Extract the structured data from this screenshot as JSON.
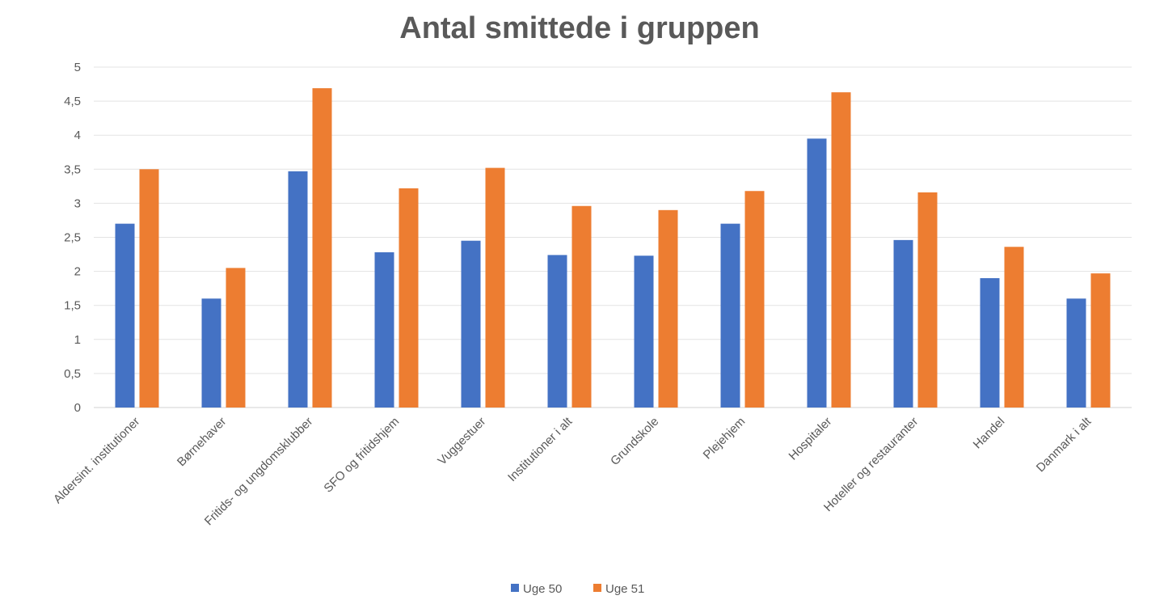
{
  "chart_data": {
    "type": "bar",
    "title": "Antal smittede i gruppen",
    "xlabel": "",
    "ylabel": "",
    "ylim": [
      0,
      5
    ],
    "yticks": [
      "0",
      "0,5",
      "1",
      "1,5",
      "2",
      "2,5",
      "3",
      "3,5",
      "4",
      "4,5",
      "5"
    ],
    "grid": true,
    "legend_position": "bottom",
    "categories": [
      "Aldersint. institutioner",
      "Børnehaver",
      "Fritids- og ungdomsklubber",
      "SFO og fritidshjem",
      "Vuggestuer",
      "Institutioner i alt",
      "Grundskole",
      "Plejehjem",
      "Hospitaler",
      "Hoteller og restauranter",
      "Handel",
      "Danmark i alt"
    ],
    "series": [
      {
        "name": "Uge 50",
        "color": "#4472C4",
        "values": [
          2.7,
          1.6,
          3.47,
          2.28,
          2.45,
          2.24,
          2.23,
          2.7,
          3.95,
          2.46,
          1.9,
          1.6
        ]
      },
      {
        "name": "Uge 51",
        "color": "#ED7D31",
        "values": [
          3.5,
          2.05,
          4.69,
          3.22,
          3.52,
          2.96,
          2.9,
          3.18,
          4.63,
          3.16,
          2.36,
          1.97
        ]
      }
    ]
  }
}
